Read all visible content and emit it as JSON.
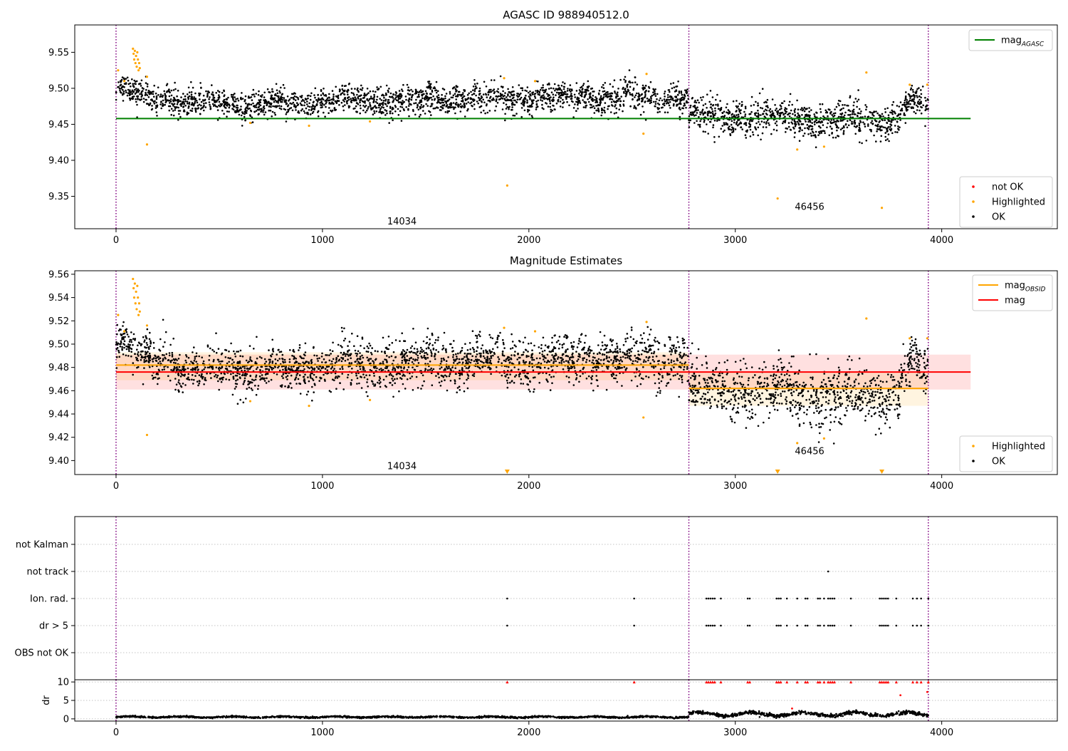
{
  "chart_data": [
    {
      "type": "scatter",
      "title": "AGASC ID 988940512.0",
      "xlim": [
        -200,
        4560
      ],
      "ylim": [
        9.305,
        9.588
      ],
      "xticks": [
        0,
        1000,
        2000,
        3000,
        4000
      ],
      "yticks": [
        9.35,
        9.4,
        9.45,
        9.5,
        9.55
      ],
      "obsid_boundaries": [
        0,
        2775,
        3935
      ],
      "obsid_labels": [
        {
          "text": "14034",
          "x": 1385,
          "y": 9.315
        },
        {
          "text": "46456",
          "x": 3360,
          "y": 9.335
        }
      ],
      "reference_lines": [
        {
          "name": "mag",
          "subscript": "AGASC",
          "y": 9.458,
          "x_range": [
            0,
            4140
          ],
          "color": "#008000"
        }
      ],
      "legend_top": [
        {
          "name": "mag",
          "subscript": "AGASC",
          "color": "#008000"
        }
      ],
      "legend_bottom": [
        {
          "name": "not OK",
          "color": "#ff0000"
        },
        {
          "name": "Highlighted",
          "color": "#ffa500"
        },
        {
          "name": "OK",
          "color": "#000000"
        }
      ],
      "highlighted_points": [
        {
          "x": 10,
          "y": 9.525
        },
        {
          "x": 40,
          "y": 9.51
        },
        {
          "x": 82,
          "y": 9.555
        },
        {
          "x": 85,
          "y": 9.548
        },
        {
          "x": 88,
          "y": 9.54
        },
        {
          "x": 91,
          "y": 9.552
        },
        {
          "x": 94,
          "y": 9.535
        },
        {
          "x": 97,
          "y": 9.545
        },
        {
          "x": 100,
          "y": 9.53
        },
        {
          "x": 103,
          "y": 9.55
        },
        {
          "x": 106,
          "y": 9.54
        },
        {
          "x": 109,
          "y": 9.525
        },
        {
          "x": 112,
          "y": 9.535
        },
        {
          "x": 115,
          "y": 9.528
        },
        {
          "x": 150,
          "y": 9.516
        },
        {
          "x": 150,
          "y": 9.422
        },
        {
          "x": 650,
          "y": 9.452
        },
        {
          "x": 935,
          "y": 9.448
        },
        {
          "x": 1230,
          "y": 9.454
        },
        {
          "x": 1880,
          "y": 9.514
        },
        {
          "x": 1895,
          "y": 9.365
        },
        {
          "x": 2030,
          "y": 9.51
        },
        {
          "x": 2555,
          "y": 9.437
        },
        {
          "x": 2570,
          "y": 9.52
        },
        {
          "x": 3205,
          "y": 9.347
        },
        {
          "x": 3300,
          "y": 9.415
        },
        {
          "x": 3430,
          "y": 9.419
        },
        {
          "x": 3635,
          "y": 9.522
        },
        {
          "x": 3710,
          "y": 9.334
        },
        {
          "x": 3845,
          "y": 9.505
        },
        {
          "x": 3930,
          "y": 9.505
        }
      ],
      "ok_series_trend": [
        {
          "x_range": [
            0,
            100
          ],
          "level": 9.497,
          "scatter": 0.008
        },
        {
          "x_range": [
            100,
            300
          ],
          "level": 9.488,
          "scatter": 0.009
        },
        {
          "x_range": [
            300,
            900
          ],
          "level": 9.478,
          "scatter": 0.009
        },
        {
          "x_range": [
            900,
            1500
          ],
          "level": 9.482,
          "scatter": 0.01
        },
        {
          "x_range": [
            1500,
            2100
          ],
          "level": 9.486,
          "scatter": 0.01
        },
        {
          "x_range": [
            2100,
            2775
          ],
          "level": 9.487,
          "scatter": 0.01
        },
        {
          "x_range": [
            2775,
            3300
          ],
          "level": 9.461,
          "scatter": 0.012
        },
        {
          "x_range": [
            3300,
            3800
          ],
          "level": 9.455,
          "scatter": 0.012
        },
        {
          "x_range": [
            3800,
            3935
          ],
          "level": 9.478,
          "scatter": 0.01
        }
      ]
    },
    {
      "type": "scatter",
      "title": "Magnitude Estimates",
      "xlim": [
        -200,
        4560
      ],
      "ylim": [
        9.388,
        9.563
      ],
      "xticks": [
        0,
        1000,
        2000,
        3000,
        4000
      ],
      "yticks": [
        9.4,
        9.42,
        9.44,
        9.46,
        9.48,
        9.5,
        9.52,
        9.54,
        9.56
      ],
      "obsid_boundaries": [
        0,
        2775,
        3935
      ],
      "obsid_labels": [
        {
          "text": "14034",
          "x": 1385,
          "y": 9.395
        },
        {
          "text": "46456",
          "x": 3360,
          "y": 9.408
        }
      ],
      "reference_lines": [
        {
          "name": "mag",
          "y": 9.476,
          "x_range": [
            0,
            4140
          ],
          "band": [
            9.461,
            9.491
          ],
          "color": "#ff0000"
        },
        {
          "name": "mag",
          "subscript": "OBSID",
          "y": 9.482,
          "x_range": [
            0,
            2775
          ],
          "band": [
            9.469,
            9.493
          ],
          "color": "#ffa500"
        },
        {
          "name": "mag",
          "subscript": "OBSID",
          "y": 9.462,
          "x_range": [
            2775,
            3935
          ],
          "band": [
            9.447,
            9.476
          ],
          "color": "#ffa500"
        }
      ],
      "legend_top": [
        {
          "name": "mag",
          "subscript": "OBSID",
          "color": "#ffa500"
        },
        {
          "name": "mag",
          "color": "#ff0000"
        }
      ],
      "legend_bottom": [
        {
          "name": "Highlighted",
          "color": "#ffa500"
        },
        {
          "name": "OK",
          "color": "#000000"
        }
      ],
      "off_scale_markers": [
        {
          "x": 1895
        },
        {
          "x": 3205
        },
        {
          "x": 3710
        }
      ],
      "highlighted_points": [
        {
          "x": 10,
          "y": 9.525
        },
        {
          "x": 40,
          "y": 9.511
        },
        {
          "x": 82,
          "y": 9.556
        },
        {
          "x": 85,
          "y": 9.548
        },
        {
          "x": 88,
          "y": 9.54
        },
        {
          "x": 91,
          "y": 9.552
        },
        {
          "x": 94,
          "y": 9.535
        },
        {
          "x": 97,
          "y": 9.545
        },
        {
          "x": 100,
          "y": 9.53
        },
        {
          "x": 103,
          "y": 9.55
        },
        {
          "x": 106,
          "y": 9.54
        },
        {
          "x": 109,
          "y": 9.525
        },
        {
          "x": 112,
          "y": 9.535
        },
        {
          "x": 115,
          "y": 9.528
        },
        {
          "x": 150,
          "y": 9.516
        },
        {
          "x": 150,
          "y": 9.422
        },
        {
          "x": 650,
          "y": 9.451
        },
        {
          "x": 935,
          "y": 9.447
        },
        {
          "x": 1230,
          "y": 9.452
        },
        {
          "x": 1880,
          "y": 9.514
        },
        {
          "x": 2030,
          "y": 9.511
        },
        {
          "x": 2555,
          "y": 9.437
        },
        {
          "x": 2570,
          "y": 9.519
        },
        {
          "x": 3300,
          "y": 9.415
        },
        {
          "x": 3430,
          "y": 9.419
        },
        {
          "x": 3635,
          "y": 9.522
        },
        {
          "x": 3845,
          "y": 9.505
        },
        {
          "x": 3930,
          "y": 9.505
        }
      ],
      "ok_series_trend": [
        {
          "x_range": [
            0,
            100
          ],
          "level": 9.497,
          "scatter": 0.008
        },
        {
          "x_range": [
            100,
            300
          ],
          "level": 9.488,
          "scatter": 0.009
        },
        {
          "x_range": [
            300,
            900
          ],
          "level": 9.478,
          "scatter": 0.009
        },
        {
          "x_range": [
            900,
            1500
          ],
          "level": 9.482,
          "scatter": 0.01
        },
        {
          "x_range": [
            1500,
            2100
          ],
          "level": 9.486,
          "scatter": 0.01
        },
        {
          "x_range": [
            2100,
            2775
          ],
          "level": 9.487,
          "scatter": 0.01
        },
        {
          "x_range": [
            2775,
            3300
          ],
          "level": 9.461,
          "scatter": 0.012
        },
        {
          "x_range": [
            3300,
            3800
          ],
          "level": 9.455,
          "scatter": 0.012
        },
        {
          "x_range": [
            3800,
            3935
          ],
          "level": 9.478,
          "scatter": 0.01
        }
      ]
    },
    {
      "type": "scatter",
      "title": "",
      "xlim": [
        -200,
        4560
      ],
      "categories": [
        "not Kalman",
        "not track",
        "Ion. rad.",
        "dr > 5",
        "OBS not OK"
      ],
      "obsid_boundaries": [
        0,
        2775,
        3935
      ],
      "flags": {
        "not track": [
          3450
        ],
        "Ion. rad.": [
          1895,
          2510,
          2860,
          2870,
          2880,
          2890,
          2900,
          2930,
          3060,
          3070,
          3200,
          3210,
          3220,
          3250,
          3300,
          3340,
          3350,
          3400,
          3410,
          3430,
          3450,
          3460,
          3470,
          3480,
          3560,
          3700,
          3710,
          3720,
          3730,
          3740,
          3780,
          3860,
          3880,
          3900,
          3935
        ],
        "dr > 5": [
          1895,
          2510,
          2860,
          2870,
          2880,
          2890,
          2900,
          2930,
          3060,
          3070,
          3200,
          3210,
          3220,
          3250,
          3300,
          3340,
          3350,
          3400,
          3410,
          3430,
          3450,
          3460,
          3470,
          3480,
          3560,
          3700,
          3710,
          3720,
          3730,
          3740,
          3780,
          3860,
          3880,
          3900,
          3935
        ]
      }
    },
    {
      "type": "scatter",
      "title": "",
      "ylabel": "dr",
      "xlim": [
        -200,
        4560
      ],
      "ylim": [
        -0.6,
        10.6
      ],
      "xticks": [
        0,
        1000,
        2000,
        3000,
        4000
      ],
      "yticks": [
        0,
        5,
        10
      ],
      "obsid_boundaries": [
        0,
        2775,
        3935
      ],
      "clipped_markers_at_10": [
        1895,
        2510,
        2860,
        2870,
        2880,
        2890,
        2900,
        2930,
        3060,
        3070,
        3200,
        3210,
        3220,
        3250,
        3300,
        3340,
        3350,
        3400,
        3410,
        3430,
        3450,
        3460,
        3470,
        3480,
        3560,
        3700,
        3710,
        3720,
        3730,
        3740,
        3780,
        3860,
        3880,
        3900,
        3935
      ],
      "outlier_points": [
        {
          "x": 3800,
          "y": 6.4
        },
        {
          "x": 3930,
          "y": 7.3
        },
        {
          "x": 3275,
          "y": 2.8
        }
      ],
      "dr_trend": [
        {
          "x_range": [
            0,
            2775
          ],
          "level": 0.5,
          "scatter": 0.2
        },
        {
          "x_range": [
            2775,
            3935
          ],
          "level": 1.3,
          "scatter": 0.45
        }
      ]
    }
  ]
}
